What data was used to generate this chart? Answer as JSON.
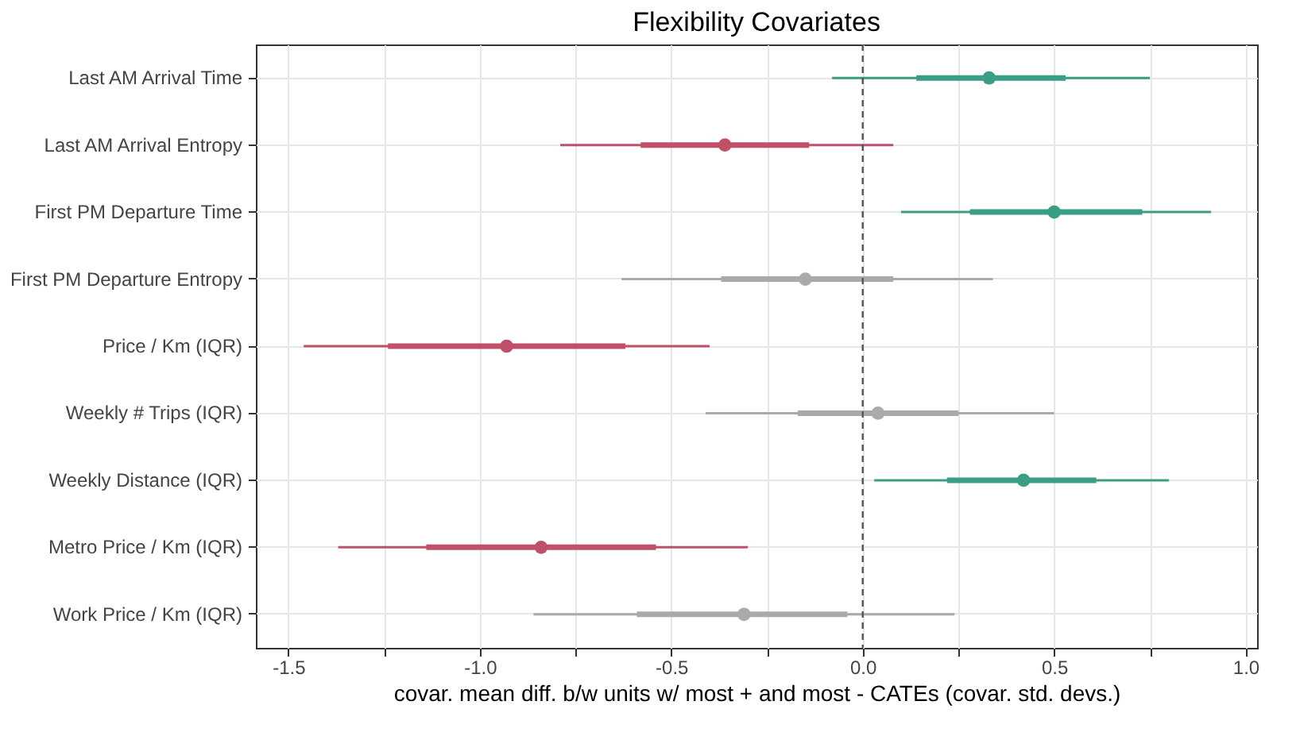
{
  "chart_data": {
    "type": "scatter",
    "orientation": "horizontal",
    "title": "Flexibility Covariates",
    "xlabel": "covar. mean diff. b/w units w/ most + and most - CATEs (covar. std. devs.)",
    "categories": [
      "Last AM Arrival Time",
      "Last AM Arrival Entropy",
      "First PM Departure Time",
      "First PM Departure Entropy",
      "Price / Km (IQR)",
      "Weekly # Trips (IQR)",
      "Weekly Distance (IQR)",
      "Metro Price / Km (IQR)",
      "Work Price / Km (IQR)"
    ],
    "series": [
      {
        "marker": "circle",
        "colors": [
          "#3a9e85",
          "#c0506a",
          "#3a9e85",
          "#aaaaaa",
          "#c0506a",
          "#aaaaaa",
          "#3a9e85",
          "#c0506a",
          "#aaaaaa"
        ],
        "values": [
          0.33,
          -0.36,
          0.5,
          -0.15,
          -0.93,
          0.04,
          0.42,
          -0.84,
          -0.31
        ],
        "errors": [
          [
            -0.08,
            0.75
          ],
          [
            -0.79,
            0.08
          ],
          [
            0.1,
            0.91
          ],
          [
            -0.63,
            0.34
          ],
          [
            -1.46,
            -0.4
          ],
          [
            -0.41,
            0.5
          ],
          [
            0.03,
            0.8
          ],
          [
            -1.37,
            -0.3
          ],
          [
            -0.86,
            0.24
          ]
        ]
      },
      {
        "type": "bar",
        "colors": [
          "#3a9e85",
          "#c0506a",
          "#3a9e85",
          "#aaaaaa",
          "#c0506a",
          "#aaaaaa",
          "#3a9e85",
          "#c0506a",
          "#aaaaaa"
        ],
        "base": [
          0.14,
          -0.58,
          0.28,
          -0.37,
          -1.24,
          -0.17,
          0.22,
          -1.14,
          -0.59
        ],
        "values": [
          0.39,
          0.44,
          0.45,
          0.45,
          0.62,
          0.42,
          0.39,
          0.6,
          0.55
        ]
      }
    ],
    "xlim": [
      -1.585,
      1.03
    ],
    "xticks": [
      -1.5,
      {
        "value": -1.25,
        "label": null
      },
      {
        "value": -1.0,
        "label": "-1.0"
      },
      {
        "value": -0.75,
        "label": null
      },
      -0.5,
      {
        "value": -0.25,
        "label": null
      },
      {
        "value": 0,
        "label": "0.0"
      },
      {
        "value": 0.25,
        "label": null
      },
      0.5,
      {
        "value": 0.75,
        "label": null
      },
      {
        "value": 1.0,
        "label": "1.0"
      }
    ],
    "ref_lines": [
      {
        "axis": "x",
        "value": 0,
        "label": null,
        "color": "#555555",
        "line_style": "dashed"
      }
    ],
    "grid": true,
    "legend": false
  }
}
